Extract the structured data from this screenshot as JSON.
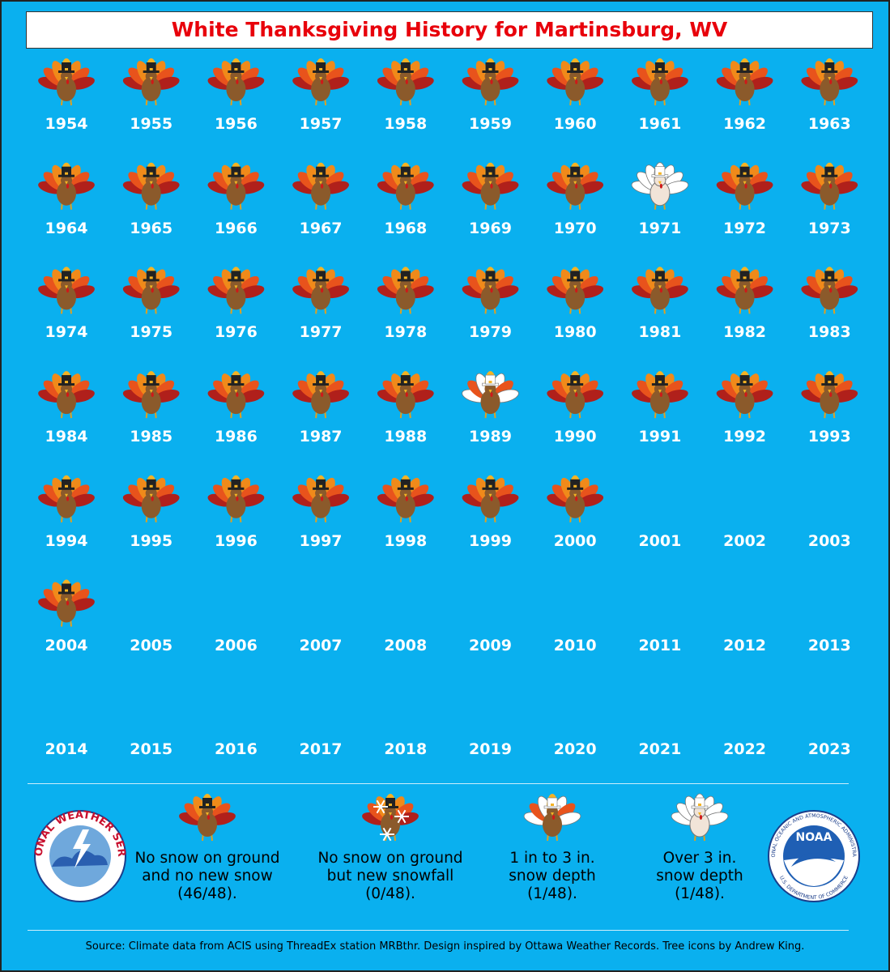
{
  "title": "White Thanksgiving History for Martinsburg, WV",
  "years": [
    {
      "year": "1954",
      "category": 0
    },
    {
      "year": "1955",
      "category": 0
    },
    {
      "year": "1956",
      "category": 0
    },
    {
      "year": "1957",
      "category": 0
    },
    {
      "year": "1958",
      "category": 0
    },
    {
      "year": "1959",
      "category": 0
    },
    {
      "year": "1960",
      "category": 0
    },
    {
      "year": "1961",
      "category": 0
    },
    {
      "year": "1962",
      "category": 0
    },
    {
      "year": "1963",
      "category": 0
    },
    {
      "year": "1964",
      "category": 0
    },
    {
      "year": "1965",
      "category": 0
    },
    {
      "year": "1966",
      "category": 0
    },
    {
      "year": "1967",
      "category": 0
    },
    {
      "year": "1968",
      "category": 0
    },
    {
      "year": "1969",
      "category": 0
    },
    {
      "year": "1970",
      "category": 0
    },
    {
      "year": "1971",
      "category": 3
    },
    {
      "year": "1972",
      "category": 0
    },
    {
      "year": "1973",
      "category": 0
    },
    {
      "year": "1974",
      "category": 0
    },
    {
      "year": "1975",
      "category": 0
    },
    {
      "year": "1976",
      "category": 0
    },
    {
      "year": "1977",
      "category": 0
    },
    {
      "year": "1978",
      "category": 0
    },
    {
      "year": "1979",
      "category": 0
    },
    {
      "year": "1980",
      "category": 0
    },
    {
      "year": "1981",
      "category": 0
    },
    {
      "year": "1982",
      "category": 0
    },
    {
      "year": "1983",
      "category": 0
    },
    {
      "year": "1984",
      "category": 0
    },
    {
      "year": "1985",
      "category": 0
    },
    {
      "year": "1986",
      "category": 0
    },
    {
      "year": "1987",
      "category": 0
    },
    {
      "year": "1988",
      "category": 0
    },
    {
      "year": "1989",
      "category": 2
    },
    {
      "year": "1990",
      "category": 0
    },
    {
      "year": "1991",
      "category": 0
    },
    {
      "year": "1992",
      "category": 0
    },
    {
      "year": "1993",
      "category": 0
    },
    {
      "year": "1994",
      "category": 0
    },
    {
      "year": "1995",
      "category": 0
    },
    {
      "year": "1996",
      "category": 0
    },
    {
      "year": "1997",
      "category": 0
    },
    {
      "year": "1998",
      "category": 0
    },
    {
      "year": "1999",
      "category": 0
    },
    {
      "year": "2000",
      "category": 0
    },
    {
      "year": "2001",
      "category": null
    },
    {
      "year": "2002",
      "category": null
    },
    {
      "year": "2003",
      "category": null
    },
    {
      "year": "2004",
      "category": 0
    },
    {
      "year": "2005",
      "category": null
    },
    {
      "year": "2006",
      "category": null
    },
    {
      "year": "2007",
      "category": null
    },
    {
      "year": "2008",
      "category": null
    },
    {
      "year": "2009",
      "category": null
    },
    {
      "year": "2010",
      "category": null
    },
    {
      "year": "2011",
      "category": null
    },
    {
      "year": "2012",
      "category": null
    },
    {
      "year": "2013",
      "category": null
    },
    {
      "year": "2014",
      "category": null
    },
    {
      "year": "2015",
      "category": null
    },
    {
      "year": "2016",
      "category": null
    },
    {
      "year": "2017",
      "category": null
    },
    {
      "year": "2018",
      "category": null
    },
    {
      "year": "2019",
      "category": null
    },
    {
      "year": "2020",
      "category": null
    },
    {
      "year": "2021",
      "category": null
    },
    {
      "year": "2022",
      "category": null
    },
    {
      "year": "2023",
      "category": null
    }
  ],
  "legend": [
    {
      "label": "No snow on ground and no new snow (46/48)."
    },
    {
      "label": "No snow on ground but new snowfall (0/48)."
    },
    {
      "label": "1 in to 3 in. snow depth (1/48)."
    },
    {
      "label": "Over 3 in. snow depth (1/48)."
    }
  ],
  "logos": {
    "nws": "NATIONAL WEATHER SERVICE",
    "noaa": "NOAA",
    "noaa_ring": "NATIONAL OCEANIC AND ATMOSPHERIC ADMINISTRATION",
    "noaa_bottom": "U.S. DEPARTMENT OF COMMERCE"
  },
  "source": "Source: Climate data from ACIS using ThreadEx station MRBthr. Design inspired by Ottawa Weather Records. Tree icons by Andrew King."
}
